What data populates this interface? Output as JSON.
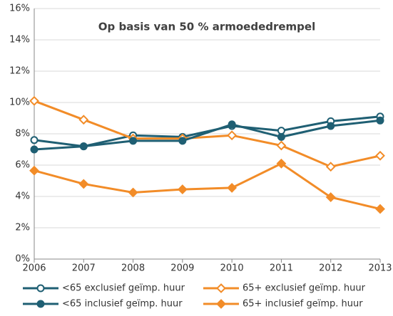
{
  "chart_data": {
    "type": "line",
    "title": "Op basis van 50 % armoededrempel",
    "x": [
      2006,
      2007,
      2008,
      2009,
      2010,
      2011,
      2012,
      2013
    ],
    "xlim": [
      2006,
      2013
    ],
    "xticks": [
      2006,
      2007,
      2008,
      2009,
      2010,
      2011,
      2012,
      2013
    ],
    "ylim": [
      0,
      16
    ],
    "yticks": [
      {
        "value": 0,
        "label": "0%"
      },
      {
        "value": 2,
        "label": "2%"
      },
      {
        "value": 4,
        "label": "4%"
      },
      {
        "value": 6,
        "label": "6%"
      },
      {
        "value": 8,
        "label": "8%"
      },
      {
        "value": 10,
        "label": "10%"
      },
      {
        "value": 12,
        "label": "12%"
      },
      {
        "value": 14,
        "label": "14%"
      },
      {
        "value": 16,
        "label": "16%"
      }
    ],
    "grid": true,
    "series": [
      {
        "name": "<65 exclusief geïmp. huur",
        "color": "#1f5f73",
        "marker": "circle-open",
        "values": [
          7.6,
          7.2,
          7.9,
          7.8,
          8.5,
          8.2,
          8.8,
          9.1
        ]
      },
      {
        "name": "65+ exclusief geïmp. huur",
        "color": "#f28c28",
        "marker": "diamond-open",
        "values": [
          10.1,
          8.9,
          7.7,
          7.7,
          7.9,
          7.25,
          5.9,
          6.6
        ]
      },
      {
        "name": "<65 inclusief geïmp. huur",
        "color": "#1f5f73",
        "marker": "circle",
        "values": [
          7.0,
          7.2,
          7.55,
          7.55,
          8.6,
          7.8,
          8.5,
          8.85
        ]
      },
      {
        "name": "65+ inclusief geïmp. huur",
        "color": "#f28c28",
        "marker": "diamond",
        "values": [
          5.65,
          4.8,
          4.25,
          4.45,
          4.55,
          6.1,
          3.95,
          3.2
        ]
      }
    ]
  }
}
